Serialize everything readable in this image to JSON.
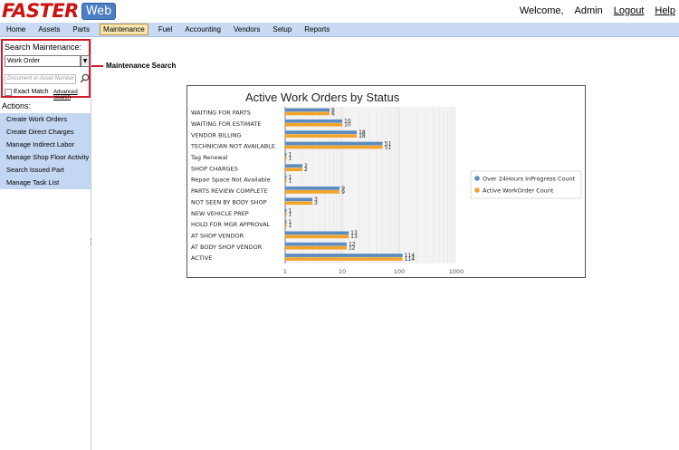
{
  "header": {
    "logo_main": "FASTER",
    "logo_sub": "Web",
    "welcome": "Welcome,",
    "user": "Admin",
    "logout": "Logout",
    "help": "Help"
  },
  "nav": {
    "items": [
      {
        "label": "Home",
        "active": false
      },
      {
        "label": "Assets",
        "active": false
      },
      {
        "label": "Parts",
        "active": false
      },
      {
        "label": "Maintenance",
        "active": true
      },
      {
        "label": "Fuel",
        "active": false
      },
      {
        "label": "Accounting",
        "active": false
      },
      {
        "label": "Vendors",
        "active": false
      },
      {
        "label": "Setup",
        "active": false
      },
      {
        "label": "Reports",
        "active": false
      }
    ]
  },
  "search": {
    "title": "Search Maintenance:",
    "type_value": "Work Order",
    "input_placeholder": "Document or Asset Number",
    "exact_match_label": "Exact Match",
    "advanced_label": "Advanced Search"
  },
  "callout": {
    "label": "Maintenance Search"
  },
  "actions": {
    "title": "Actions:",
    "items": [
      "Create Work Orders",
      "Create Direct Charges",
      "Manage Indirect Labor",
      "Manage Shop Floor Activity",
      "Search Issued Part",
      "Manage Task List"
    ]
  },
  "colors": {
    "series_blue": "#5b8bbf",
    "series_orange": "#f2a32a",
    "accent_red": "#d11a2a",
    "nav_bg": "#c9daf2"
  },
  "chart_data": {
    "type": "bar",
    "orientation": "horizontal",
    "title": "Active Work Orders by Status",
    "x_scale": "log",
    "xlim": [
      1,
      1000
    ],
    "x_ticks": [
      "1",
      "10",
      "100",
      "1000"
    ],
    "legend_position": "right",
    "categories": [
      "WAITING FOR PARTS",
      "WAITING FOR ESTIMATE",
      "VENDOR BILLING",
      "TECHNICIAN NOT AVAILABLE",
      "Tag Renewal",
      "SHOP CHARGES",
      "Repair Space Not Available",
      "PARTS REVIEW COMPLETE",
      "NOT SEEN BY BODY SHOP",
      "NEW VEHICLE PREP",
      "HOLD FOR MGR APPROVAL",
      "AT SHOP VENDOR",
      "AT BODY SHOP VENDOR",
      "ACTIVE"
    ],
    "series": [
      {
        "name": "Over 24Hours InProgress Count",
        "values": [
          6,
          10,
          18,
          51,
          1,
          2,
          1,
          9,
          3,
          1,
          1,
          13,
          12,
          114
        ]
      },
      {
        "name": "Active WorkOrder Count",
        "values": [
          6,
          10,
          18,
          51,
          1,
          2,
          1,
          9,
          3,
          1,
          1,
          13,
          12,
          114
        ]
      }
    ]
  }
}
